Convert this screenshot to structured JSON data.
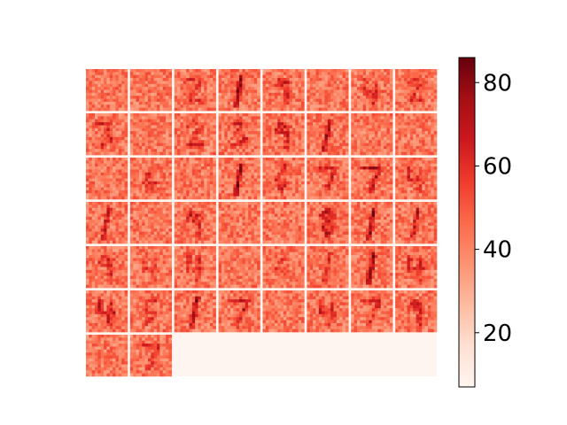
{
  "chart_data": {
    "type": "heatmap",
    "title": "",
    "xlabel": "",
    "ylabel": "",
    "grid": {
      "rows": 7,
      "cols": 8,
      "tile_count": 50,
      "empty_fill_value": 7,
      "tile_digits": [
        "",
        "",
        "2",
        "1",
        "9",
        "",
        "4",
        "2",
        "3",
        "",
        "2",
        "3",
        "9",
        "1",
        "",
        "",
        "",
        "6",
        "",
        "1",
        "6",
        "7",
        "7",
        "4",
        "1",
        "",
        "9",
        "",
        "",
        "8",
        "1",
        "1",
        "9",
        "4",
        "4",
        "",
        "6",
        "1",
        "1",
        "4",
        "4",
        "5",
        "1",
        "7",
        "",
        "4",
        "7",
        "9",
        "",
        "7"
      ],
      "tile_ink_intensity": [
        0.25,
        0.15,
        0.35,
        0.9,
        0.55,
        0.25,
        0.45,
        0.35,
        0.45,
        0.2,
        0.4,
        0.45,
        0.55,
        0.85,
        0.25,
        0.25,
        0.3,
        0.4,
        0.25,
        0.9,
        0.45,
        0.45,
        0.7,
        0.45,
        0.6,
        0.2,
        0.55,
        0.25,
        0.25,
        0.65,
        0.95,
        0.6,
        0.45,
        0.35,
        0.4,
        0.3,
        0.35,
        0.45,
        0.9,
        0.5,
        0.6,
        0.35,
        0.9,
        0.55,
        0.3,
        0.45,
        0.45,
        0.55,
        0.4,
        0.4
      ]
    },
    "colorbar": {
      "colormap": "Reds",
      "vmin": 7,
      "vmax": 86,
      "ticks": [
        20,
        40,
        60,
        80
      ],
      "tick_labels": [
        "20",
        "40",
        "60",
        "80"
      ]
    }
  }
}
